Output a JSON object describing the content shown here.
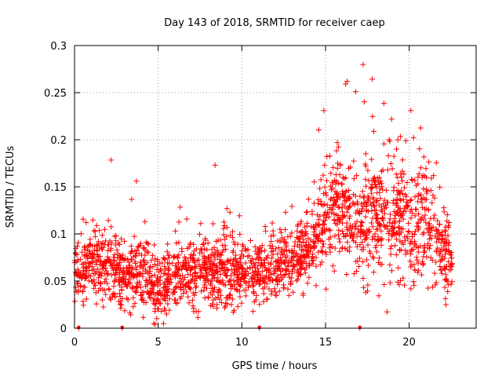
{
  "chart_data": {
    "type": "scatter",
    "title": "Day 143 of 2018, SRMTID for receiver caep",
    "xlabel": "GPS time / hours",
    "ylabel": "SRMTID / TECUs",
    "xlim": [
      0,
      24
    ],
    "ylim": [
      0,
      0.3
    ],
    "grid": true,
    "marker": "+",
    "marker_color": "#ff0000",
    "x_ticks": [
      {
        "value": 0,
        "label": "0"
      },
      {
        "value": 5,
        "label": "5"
      },
      {
        "value": 10,
        "label": "10"
      },
      {
        "value": 15,
        "label": "15"
      },
      {
        "value": 20,
        "label": "20"
      }
    ],
    "y_ticks": [
      {
        "value": 0,
        "label": "0"
      },
      {
        "value": 0.05,
        "label": "0.05"
      },
      {
        "value": 0.1,
        "label": "0.1"
      },
      {
        "value": 0.15,
        "label": "0.15"
      },
      {
        "value": 0.2,
        "label": "0.2"
      },
      {
        "value": 0.25,
        "label": "0.25"
      },
      {
        "value": 0.3,
        "label": "0.3"
      }
    ],
    "zero_points_x": [
      0.25,
      2.85,
      11.05,
      17.05
    ],
    "trend_profile": [
      {
        "x": 0.0,
        "median": 0.06,
        "spread": 0.02
      },
      {
        "x": 1.0,
        "median": 0.062,
        "spread": 0.022
      },
      {
        "x": 2.0,
        "median": 0.065,
        "spread": 0.025
      },
      {
        "x": 3.0,
        "median": 0.055,
        "spread": 0.022
      },
      {
        "x": 4.0,
        "median": 0.06,
        "spread": 0.024
      },
      {
        "x": 5.0,
        "median": 0.045,
        "spread": 0.018
      },
      {
        "x": 6.0,
        "median": 0.05,
        "spread": 0.02
      },
      {
        "x": 7.0,
        "median": 0.058,
        "spread": 0.022
      },
      {
        "x": 8.0,
        "median": 0.06,
        "spread": 0.025
      },
      {
        "x": 9.0,
        "median": 0.062,
        "spread": 0.025
      },
      {
        "x": 10.0,
        "median": 0.058,
        "spread": 0.02
      },
      {
        "x": 11.0,
        "median": 0.06,
        "spread": 0.02
      },
      {
        "x": 12.0,
        "median": 0.065,
        "spread": 0.022
      },
      {
        "x": 13.0,
        "median": 0.072,
        "spread": 0.022
      },
      {
        "x": 14.0,
        "median": 0.08,
        "spread": 0.022
      },
      {
        "x": 15.0,
        "median": 0.12,
        "spread": 0.035
      },
      {
        "x": 16.0,
        "median": 0.125,
        "spread": 0.035
      },
      {
        "x": 17.0,
        "median": 0.115,
        "spread": 0.035
      },
      {
        "x": 18.0,
        "median": 0.12,
        "spread": 0.04
      },
      {
        "x": 19.0,
        "median": 0.11,
        "spread": 0.04
      },
      {
        "x": 20.0,
        "median": 0.11,
        "spread": 0.04
      },
      {
        "x": 21.0,
        "median": 0.11,
        "spread": 0.035
      },
      {
        "x": 22.0,
        "median": 0.08,
        "spread": 0.03
      },
      {
        "x": 22.6,
        "median": 0.065,
        "spread": 0.02
      }
    ],
    "notable_points": [
      {
        "x": 3.7,
        "y": 0.156
      },
      {
        "x": 8.4,
        "y": 0.173
      },
      {
        "x": 14.9,
        "y": 0.231
      },
      {
        "x": 16.3,
        "y": 0.262
      },
      {
        "x": 16.8,
        "y": 0.251
      },
      {
        "x": 18.8,
        "y": 0.2
      },
      {
        "x": 19.8,
        "y": 0.199
      },
      {
        "x": 22.2,
        "y": 0.025
      }
    ],
    "sample_count": 2200
  }
}
